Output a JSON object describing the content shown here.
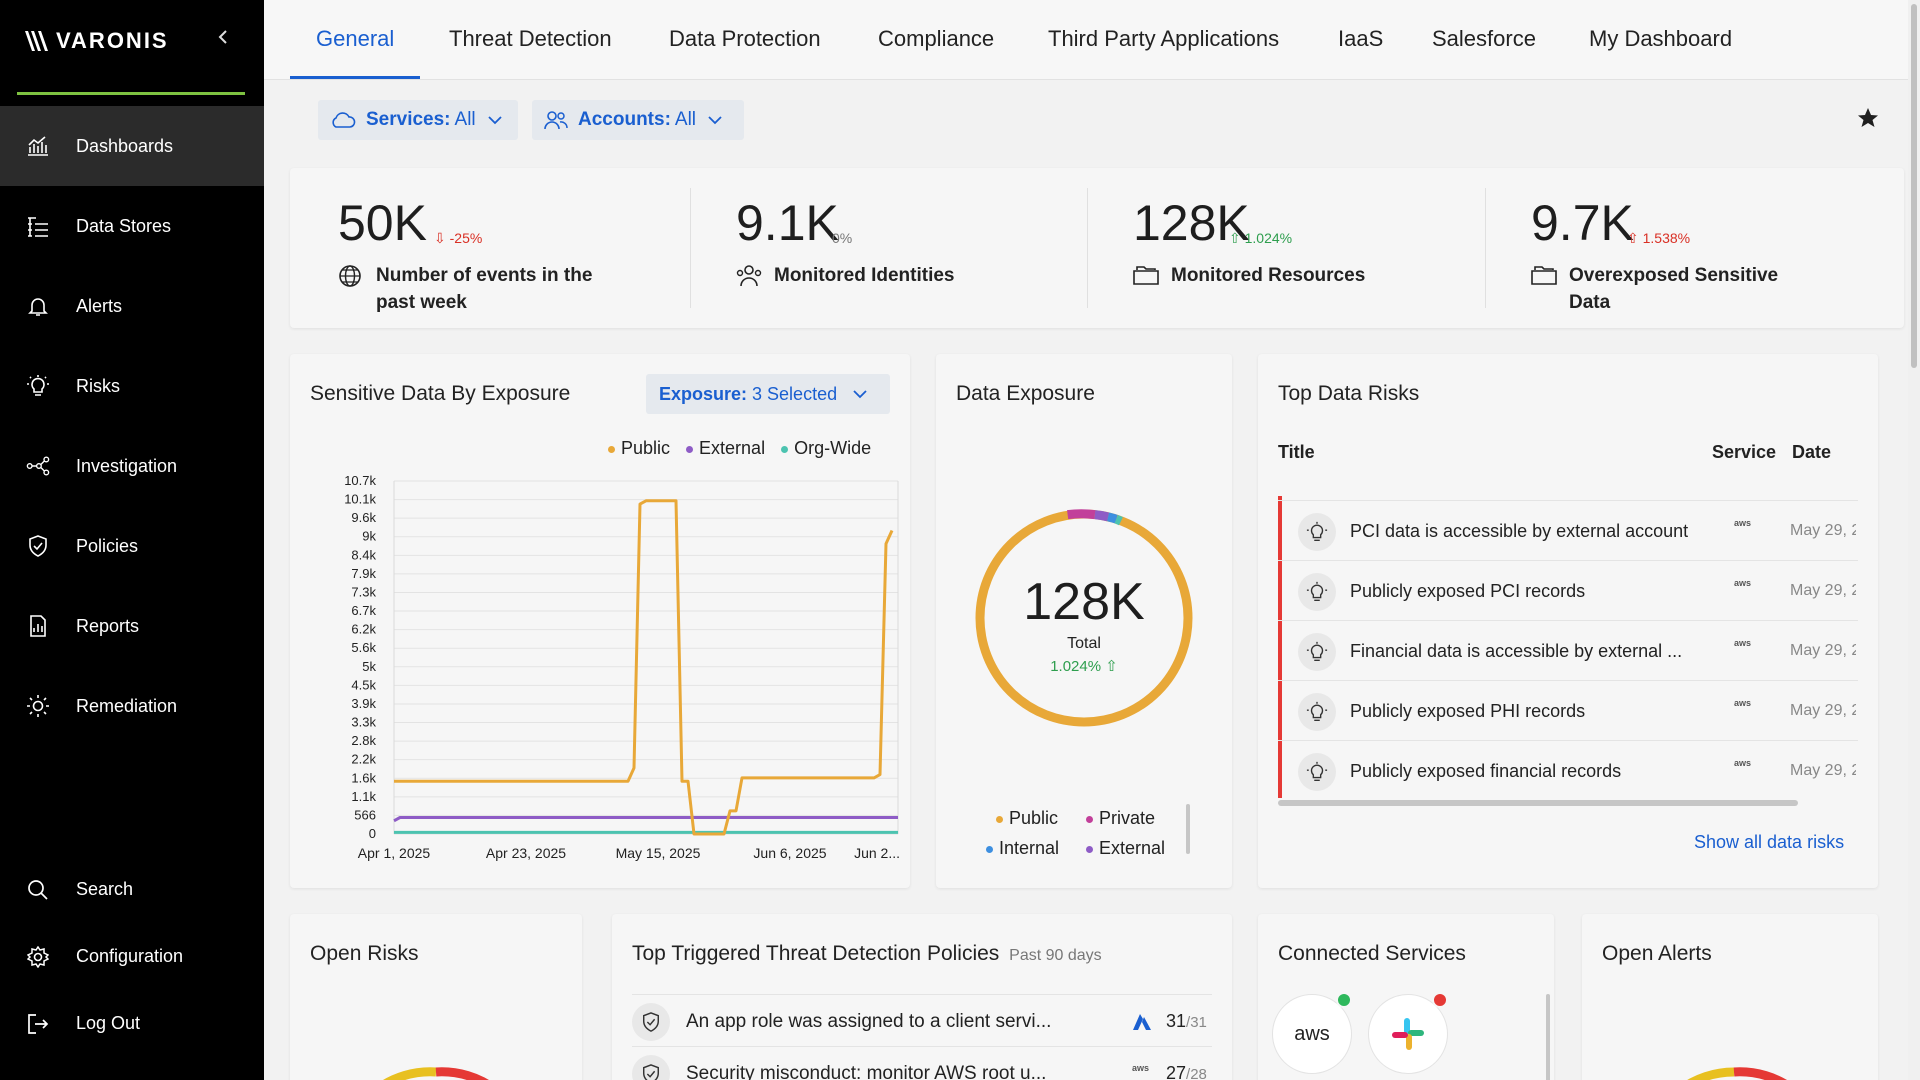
{
  "brand": {
    "name": "VARONIS"
  },
  "sidebar": {
    "items": [
      {
        "label": "Dashboards",
        "icon": "dashboard-icon",
        "active": true
      },
      {
        "label": "Data Stores",
        "icon": "data-stores-icon"
      },
      {
        "label": "Alerts",
        "icon": "bell-icon"
      },
      {
        "label": "Risks",
        "icon": "lightbulb-icon"
      },
      {
        "label": "Investigation",
        "icon": "graph-nodes-icon"
      },
      {
        "label": "Policies",
        "icon": "shield-check-icon"
      },
      {
        "label": "Reports",
        "icon": "report-icon"
      },
      {
        "label": "Remediation",
        "icon": "sun-icon"
      }
    ],
    "bottom": [
      {
        "label": "Search",
        "icon": "search-icon"
      },
      {
        "label": "Configuration",
        "icon": "gear-icon"
      },
      {
        "label": "Log Out",
        "icon": "logout-icon"
      }
    ]
  },
  "tabs": [
    "General",
    "Threat Detection",
    "Data Protection",
    "Compliance",
    "Third Party Applications",
    "IaaS",
    "Salesforce",
    "My Dashboard"
  ],
  "filters": {
    "services": {
      "label": "Services:",
      "value": "All"
    },
    "accounts": {
      "label": "Accounts:",
      "value": "All"
    }
  },
  "kpis": [
    {
      "value": "50K",
      "delta": "⇩ -25%",
      "trend": "down",
      "label": "Number of events in the past week",
      "icon": "globe-icon"
    },
    {
      "value": "9.1K",
      "delta": "0%",
      "trend": "flat",
      "label": "Monitored Identities",
      "icon": "users-icon"
    },
    {
      "value": "128K",
      "delta": "⇧ 1.024%",
      "trend": "up",
      "label": "Monitored Resources",
      "icon": "folder-icon"
    },
    {
      "value": "9.7K",
      "delta": "⇧ 1.538%",
      "trend": "up-bad",
      "label": "Overexposed Sensitive Data",
      "icon": "folder-icon"
    }
  ],
  "sensitive_chart": {
    "title": "Sensitive Data By Exposure",
    "select_label": "Exposure:",
    "select_value": "3 Selected",
    "legend": [
      {
        "name": "Public",
        "color": "#e8a838"
      },
      {
        "name": "External",
        "color": "#8e5cc6"
      },
      {
        "name": "Org-Wide",
        "color": "#4cc3b0"
      }
    ]
  },
  "chart_data": {
    "type": "line",
    "title": "Sensitive Data By Exposure",
    "y_ticks": [
      "10.7k",
      "10.1k",
      "9.6k",
      "9k",
      "8.4k",
      "7.9k",
      "7.3k",
      "6.7k",
      "6.2k",
      "5.6k",
      "5k",
      "4.5k",
      "3.9k",
      "3.3k",
      "2.8k",
      "2.2k",
      "1.6k",
      "1.1k",
      "566",
      "0"
    ],
    "ylim": [
      0,
      10700
    ],
    "x_ticks": [
      "Apr 1, 2025",
      "Apr 23, 2025",
      "May 15, 2025",
      "Jun 6, 2025",
      "Jun 2..."
    ],
    "x_days": [
      0,
      22,
      44,
      66,
      84
    ],
    "series": [
      {
        "name": "Public",
        "color": "#e8a838",
        "points": [
          [
            0,
            1600
          ],
          [
            39,
            1600
          ],
          [
            40,
            2000
          ],
          [
            41,
            10000
          ],
          [
            42,
            10100
          ],
          [
            47,
            10100
          ],
          [
            48,
            1600
          ],
          [
            49,
            1600
          ],
          [
            50,
            0
          ],
          [
            55,
            0
          ],
          [
            56,
            700
          ],
          [
            57,
            700
          ],
          [
            58,
            1700
          ],
          [
            80,
            1700
          ],
          [
            81,
            1800
          ],
          [
            82,
            8800
          ],
          [
            83,
            9200
          ]
        ]
      },
      {
        "name": "External",
        "color": "#8e5cc6",
        "points": [
          [
            0,
            400
          ],
          [
            1,
            500
          ],
          [
            84,
            500
          ]
        ]
      },
      {
        "name": "Org-Wide",
        "color": "#4cc3b0",
        "points": [
          [
            0,
            50
          ],
          [
            84,
            50
          ]
        ]
      }
    ]
  },
  "exposure_donut": {
    "title": "Data Exposure",
    "value": "128K",
    "label": "Total",
    "delta": "1.024% ⇧",
    "legend": [
      {
        "name": "Public",
        "color": "#e8a838"
      },
      {
        "name": "Private",
        "color": "#c2409a"
      },
      {
        "name": "Internal",
        "color": "#3d8fe0"
      },
      {
        "name": "External",
        "color": "#8e5cc6"
      }
    ]
  },
  "top_risks": {
    "title": "Top Data Risks",
    "columns": [
      "Title",
      "Service",
      "Date"
    ],
    "rows": [
      {
        "title": "PCI data is accessible by external account",
        "service": "aws",
        "date": "May 29, 2"
      },
      {
        "title": "Publicly exposed PCI records",
        "service": "aws",
        "date": "May 29, 2"
      },
      {
        "title": "Financial data is accessible by external ...",
        "service": "aws",
        "date": "May 29, 2"
      },
      {
        "title": "Publicly exposed PHI records",
        "service": "aws",
        "date": "May 29, 2"
      },
      {
        "title": "Publicly exposed financial records",
        "service": "aws",
        "date": "May 29, 2"
      }
    ],
    "link": "Show all data risks"
  },
  "open_risks": {
    "title": "Open Risks"
  },
  "policies": {
    "title": "Top Triggered Threat Detection Policies",
    "subtitle": "Past 90 days",
    "rows": [
      {
        "title": "An app role was assigned to a client servi...",
        "count": "31",
        "total": "/31"
      },
      {
        "title": "Security misconduct: monitor AWS root u...",
        "count": "27",
        "total": "/28"
      }
    ]
  },
  "connected": {
    "title": "Connected Services",
    "services": [
      {
        "name": "aws",
        "status": "#2eb85c"
      },
      {
        "name": "slack",
        "status": "#e53935"
      }
    ]
  },
  "open_alerts": {
    "title": "Open Alerts"
  }
}
